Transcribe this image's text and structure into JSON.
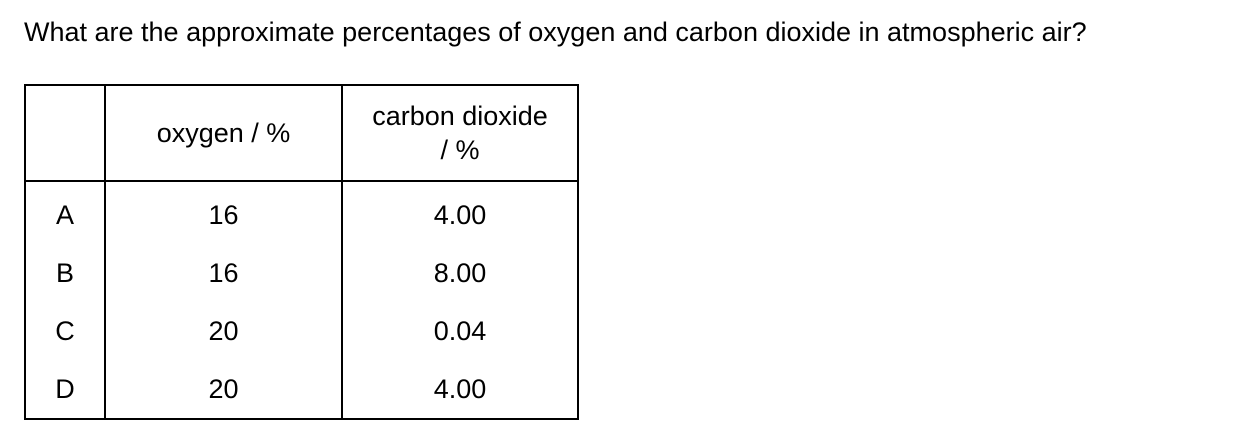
{
  "question": "What are the approximate percentages of oxygen and carbon dioxide in atmospheric air?",
  "table": {
    "headers": {
      "letter": "",
      "oxygen": "oxygen / %",
      "carbon_dioxide_line1": "carbon dioxide",
      "carbon_dioxide_line2": "/ %"
    },
    "rows": [
      {
        "letter": "A",
        "oxygen": "16",
        "carbon_dioxide": "4.00"
      },
      {
        "letter": "B",
        "oxygen": "16",
        "carbon_dioxide": "8.00"
      },
      {
        "letter": "C",
        "oxygen": "20",
        "carbon_dioxide": "0.04"
      },
      {
        "letter": "D",
        "oxygen": "20",
        "carbon_dioxide": "4.00"
      }
    ]
  }
}
